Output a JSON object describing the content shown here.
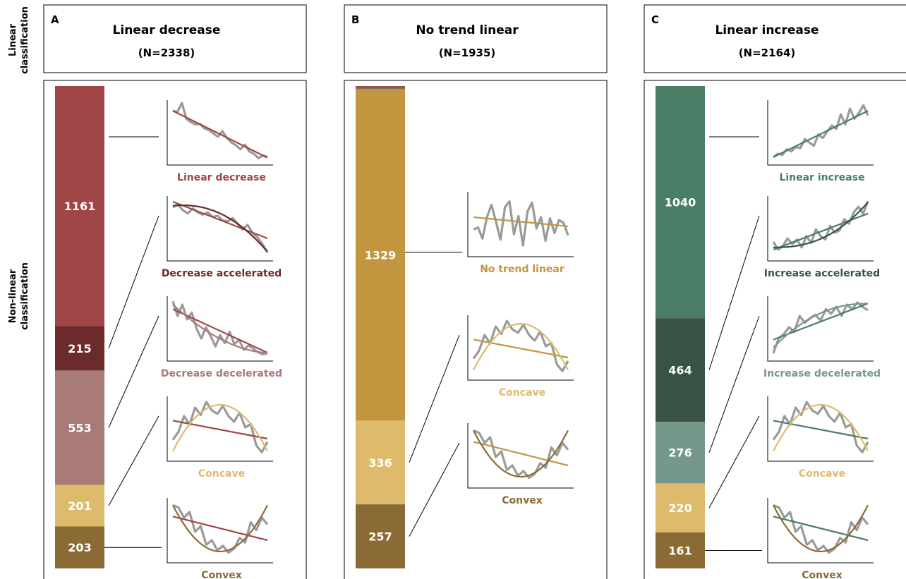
{
  "row_labels": {
    "linear": [
      "Linear",
      "classification"
    ],
    "nonlinear": [
      "Non-linear",
      "classification"
    ]
  },
  "colors": {
    "linear_decrease": "#a04646",
    "decrease_accelerated": "#6b2b2b",
    "decrease_decelerated": "#a87a78",
    "no_trend": "#c2963e",
    "concave": "#deba6c",
    "convex": "#8a6b35",
    "linear_increase": "#4a7d66",
    "increase_accelerated": "#375446",
    "increase_decelerated": "#75988a",
    "series_gray": "#9a9a9a"
  },
  "chart_data": [
    {
      "type": "bar",
      "panel": "A",
      "title": "Linear decrease",
      "subtitle": "(N=2338)",
      "linear_color": "#a04646",
      "segments": [
        {
          "label": "Linear decrease",
          "value": 1161,
          "color": "#a04646",
          "label_color": "#a04646"
        },
        {
          "label": "Decrease accelerated",
          "value": 215,
          "color": "#6b2b2b",
          "label_color": "#6b2b2b"
        },
        {
          "label": "Decrease decelerated",
          "value": 553,
          "color": "#a87a78",
          "label_color": "#a87a78"
        },
        {
          "label": "Concave",
          "value": 201,
          "color": "#deba6c",
          "label_color": "#deba6c"
        },
        {
          "label": "Convex",
          "value": 203,
          "color": "#8a6b35",
          "label_color": "#8a6b35"
        }
      ]
    },
    {
      "type": "bar",
      "panel": "B",
      "title": "No trend linear",
      "subtitle": "(N=1935)",
      "linear_color": "#c2963e",
      "segments": [
        {
          "label": "",
          "value": 7,
          "color": "#a04646",
          "label_color": ""
        },
        {
          "label": "",
          "value": 6,
          "color": "#7d7060",
          "label_color": ""
        },
        {
          "label": "No trend linear",
          "value": 1329,
          "color": "#c2963e",
          "label_color": "#c2963e"
        },
        {
          "label": "Concave",
          "value": 336,
          "color": "#deba6c",
          "label_color": "#deba6c"
        },
        {
          "label": "Convex",
          "value": 257,
          "color": "#8a6b35",
          "label_color": "#8a6b35"
        }
      ]
    },
    {
      "type": "bar",
      "panel": "C",
      "title": "Linear increase",
      "subtitle": "(N=2164)",
      "linear_color": "#4a7d66",
      "segments": [
        {
          "label": "Linear increase",
          "value": 1040,
          "color": "#4a7d66",
          "label_color": "#4a7d66"
        },
        {
          "label": "Increase accelerated",
          "value": 464,
          "color": "#375446",
          "label_color": "#375446"
        },
        {
          "label": "Increase decelerated",
          "value": 276,
          "color": "#75988a",
          "label_color": "#75988a"
        },
        {
          "label": "Concave",
          "value": 220,
          "color": "#deba6c",
          "label_color": "#deba6c"
        },
        {
          "label": "Convex",
          "value": 161,
          "color": "#8a6b35",
          "label_color": "#8a6b35"
        }
      ]
    }
  ]
}
